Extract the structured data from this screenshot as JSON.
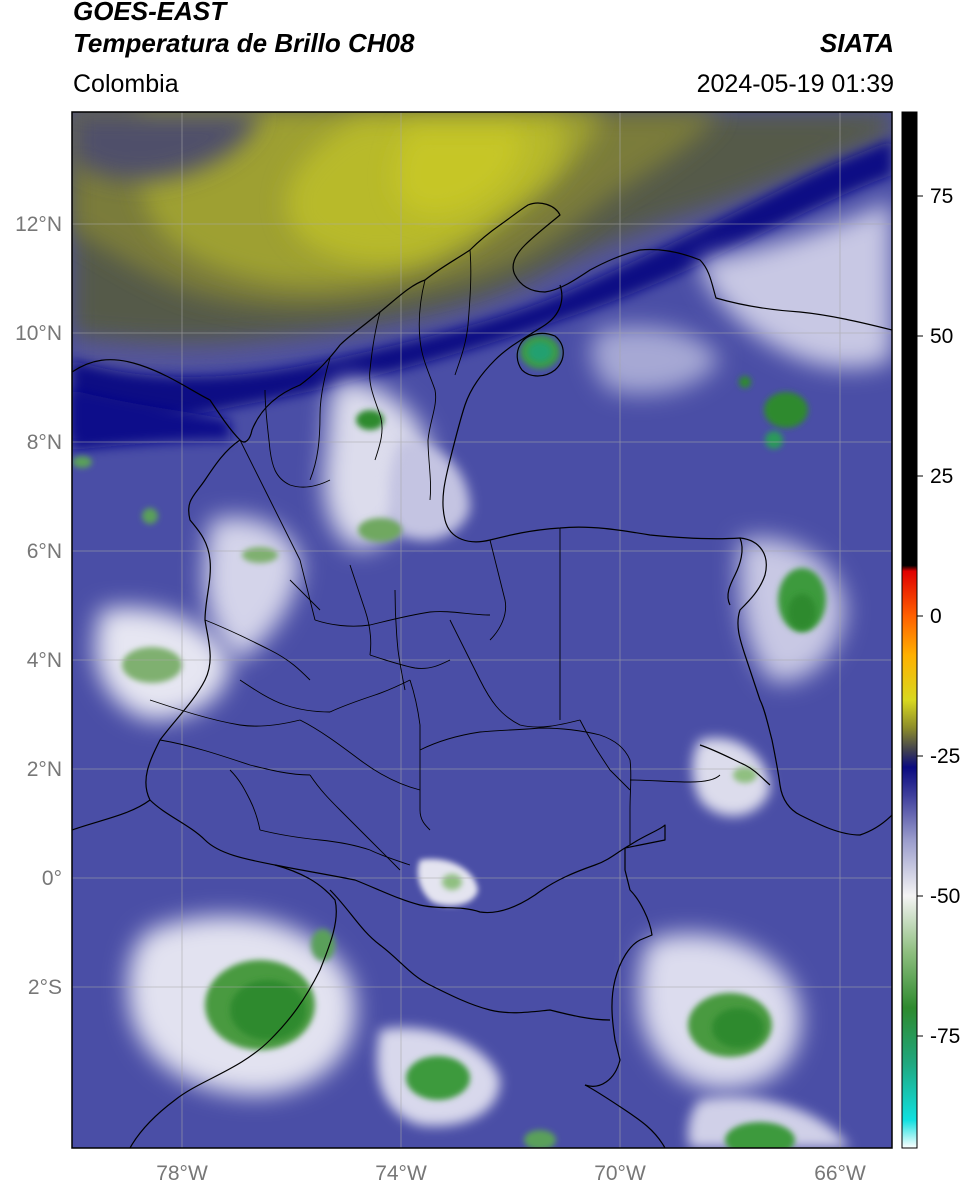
{
  "header": {
    "satellite": "GOES-EAST",
    "product": "Temperatura de Brillo CH08",
    "brand": "SIATA",
    "region": "Colombia",
    "datetime": "2024-05-19 01:39"
  },
  "map": {
    "lat_labels": [
      "12°N",
      "10°N",
      "8°N",
      "6°N",
      "4°N",
      "2°N",
      "0°",
      "2°S"
    ],
    "lon_labels": [
      "78°W",
      "74°W",
      "70°W",
      "66°W"
    ]
  },
  "colorbar": {
    "tick_labels": [
      "75",
      "50",
      "25",
      "0",
      "-25",
      "-50",
      "-75"
    ],
    "stops": [
      {
        "v": -95,
        "c": "#ffffff"
      },
      {
        "v": -90,
        "c": "#10e0e0"
      },
      {
        "v": -80,
        "c": "#20a880"
      },
      {
        "v": -70,
        "c": "#2e8a2e"
      },
      {
        "v": -60,
        "c": "#8fbf80"
      },
      {
        "v": -50,
        "c": "#f4f4f4"
      },
      {
        "v": -40,
        "c": "#9a9ccc"
      },
      {
        "v": -32,
        "c": "#3e3e9c"
      },
      {
        "v": -27,
        "c": "#0a0a80"
      },
      {
        "v": -24,
        "c": "#404050"
      },
      {
        "v": -20,
        "c": "#8c8c2a"
      },
      {
        "v": -15,
        "c": "#d8d820"
      },
      {
        "v": -7,
        "c": "#ffb000"
      },
      {
        "v": 0,
        "c": "#ff6000"
      },
      {
        "v": 8,
        "c": "#e00000"
      },
      {
        "v": 9,
        "c": "#000000"
      },
      {
        "v": 90,
        "c": "#000000"
      }
    ],
    "tick_values": [
      75,
      50,
      25,
      0,
      -25,
      -50,
      -75
    ],
    "vmin": -95,
    "vmax": 90
  },
  "colors": {
    "base_cloud": "#4a4ea6",
    "warm_dry": "#b8ba2c",
    "cold_cloud": "#2e8a2e",
    "border": "#000000",
    "grid": "#a8a8a8"
  }
}
